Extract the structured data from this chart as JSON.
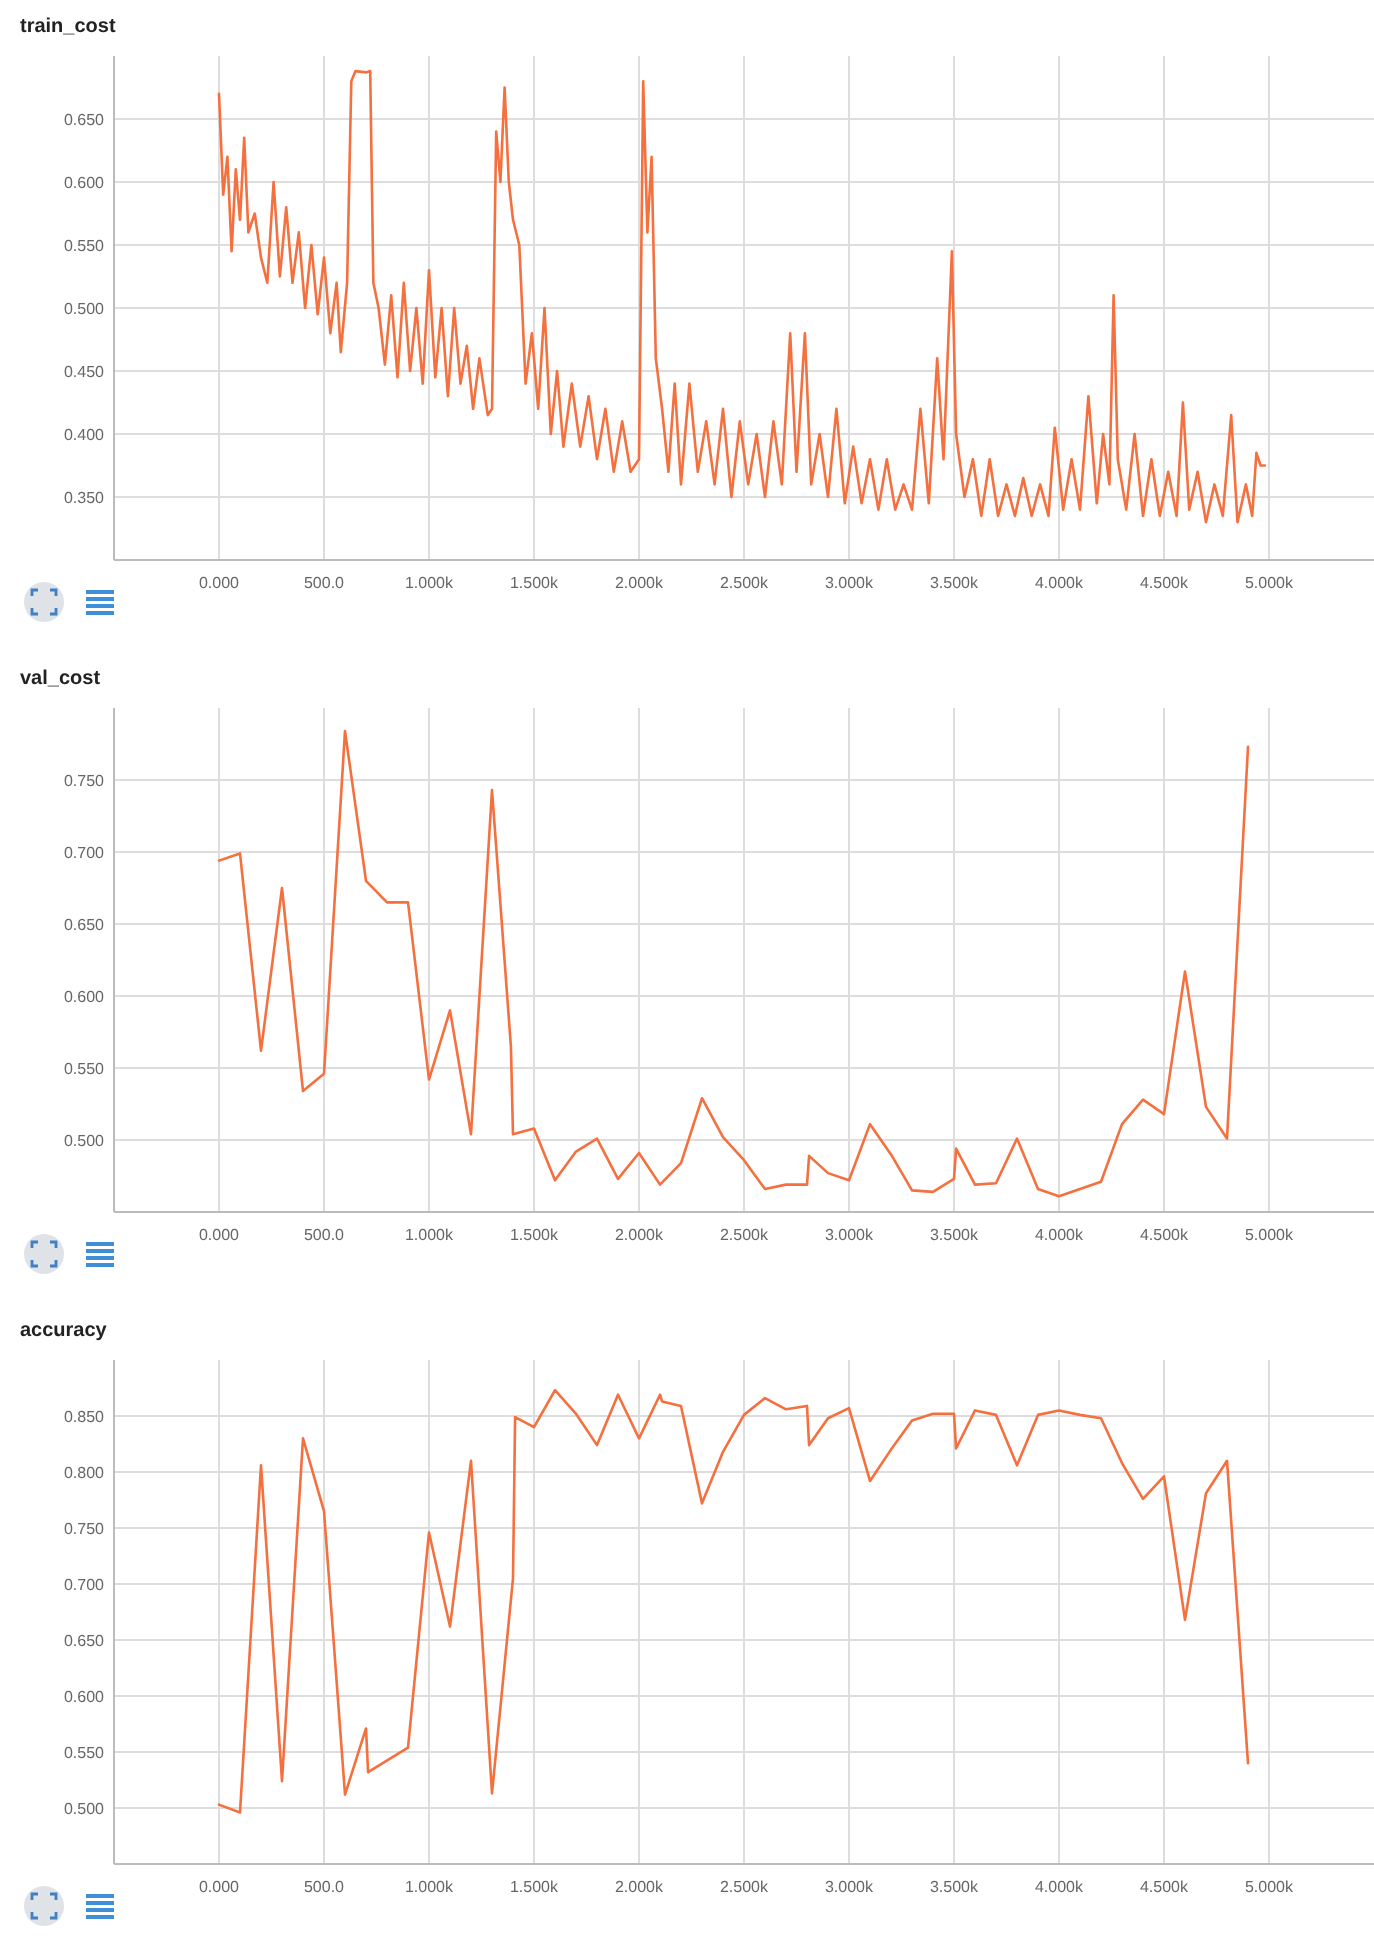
{
  "chart_data": [
    {
      "type": "line",
      "title": "train_cost",
      "grid": true,
      "xlim": [
        -500,
        5500
      ],
      "ylim": [
        0.3,
        0.7
      ],
      "xticks": [
        {
          "value": 0,
          "label": "0.000"
        },
        {
          "value": 500,
          "label": "500.0"
        },
        {
          "value": 1000,
          "label": "1.000k"
        },
        {
          "value": 1500,
          "label": "1.500k"
        },
        {
          "value": 2000,
          "label": "2.000k"
        },
        {
          "value": 2500,
          "label": "2.500k"
        },
        {
          "value": 3000,
          "label": "3.000k"
        },
        {
          "value": 3500,
          "label": "3.500k"
        },
        {
          "value": 4000,
          "label": "4.000k"
        },
        {
          "value": 4500,
          "label": "4.500k"
        },
        {
          "value": 5000,
          "label": "5.000k"
        }
      ],
      "yticks": [
        {
          "value": 0.35,
          "label": "0.350"
        },
        {
          "value": 0.4,
          "label": "0.400"
        },
        {
          "value": 0.45,
          "label": "0.450"
        },
        {
          "value": 0.5,
          "label": "0.500"
        },
        {
          "value": 0.55,
          "label": "0.550"
        },
        {
          "value": 0.6,
          "label": "0.600"
        },
        {
          "value": 0.65,
          "label": "0.650"
        }
      ],
      "series": [
        {
          "color": "#f4703f",
          "x": [
            0,
            20,
            40,
            60,
            80,
            100,
            120,
            140,
            170,
            200,
            230,
            260,
            290,
            320,
            350,
            380,
            410,
            440,
            470,
            500,
            530,
            560,
            580,
            610,
            630,
            650,
            700,
            720,
            735,
            760,
            790,
            820,
            850,
            880,
            910,
            940,
            970,
            1000,
            1030,
            1060,
            1090,
            1120,
            1150,
            1180,
            1210,
            1240,
            1280,
            1300,
            1320,
            1340,
            1360,
            1380,
            1400,
            1430,
            1460,
            1490,
            1520,
            1550,
            1580,
            1610,
            1640,
            1680,
            1720,
            1760,
            1800,
            1840,
            1880,
            1920,
            1960,
            2000,
            2020,
            2040,
            2060,
            2080,
            2110,
            2140,
            2170,
            2200,
            2240,
            2280,
            2320,
            2360,
            2400,
            2440,
            2480,
            2520,
            2560,
            2600,
            2640,
            2680,
            2720,
            2750,
            2790,
            2820,
            2860,
            2900,
            2940,
            2980,
            3020,
            3060,
            3100,
            3140,
            3180,
            3220,
            3260,
            3300,
            3340,
            3380,
            3420,
            3450,
            3490,
            3510,
            3550,
            3590,
            3630,
            3670,
            3710,
            3750,
            3790,
            3830,
            3870,
            3910,
            3950,
            3980,
            4020,
            4060,
            4100,
            4140,
            4180,
            4210,
            4240,
            4260,
            4280,
            4320,
            4360,
            4400,
            4440,
            4480,
            4520,
            4560,
            4590,
            4620,
            4660,
            4700,
            4740,
            4780,
            4820,
            4850,
            4890,
            4920,
            4940,
            4960,
            4980
          ],
          "values": [
            0.67,
            0.59,
            0.62,
            0.545,
            0.61,
            0.57,
            0.635,
            0.56,
            0.575,
            0.54,
            0.52,
            0.6,
            0.525,
            0.58,
            0.52,
            0.56,
            0.5,
            0.55,
            0.495,
            0.54,
            0.48,
            0.52,
            0.465,
            0.52,
            0.68,
            0.688,
            0.687,
            0.688,
            0.52,
            0.5,
            0.455,
            0.51,
            0.445,
            0.52,
            0.45,
            0.5,
            0.44,
            0.53,
            0.445,
            0.5,
            0.43,
            0.5,
            0.44,
            0.47,
            0.42,
            0.46,
            0.415,
            0.42,
            0.64,
            0.6,
            0.675,
            0.6,
            0.57,
            0.55,
            0.44,
            0.48,
            0.42,
            0.5,
            0.4,
            0.45,
            0.39,
            0.44,
            0.39,
            0.43,
            0.38,
            0.42,
            0.37,
            0.41,
            0.37,
            0.38,
            0.68,
            0.56,
            0.62,
            0.46,
            0.42,
            0.37,
            0.44,
            0.36,
            0.44,
            0.37,
            0.41,
            0.36,
            0.42,
            0.35,
            0.41,
            0.36,
            0.4,
            0.35,
            0.41,
            0.36,
            0.48,
            0.37,
            0.48,
            0.36,
            0.4,
            0.35,
            0.42,
            0.345,
            0.39,
            0.345,
            0.38,
            0.34,
            0.38,
            0.34,
            0.36,
            0.34,
            0.42,
            0.345,
            0.46,
            0.38,
            0.545,
            0.4,
            0.35,
            0.38,
            0.335,
            0.38,
            0.335,
            0.36,
            0.335,
            0.365,
            0.335,
            0.36,
            0.335,
            0.405,
            0.34,
            0.38,
            0.34,
            0.43,
            0.345,
            0.4,
            0.36,
            0.51,
            0.38,
            0.34,
            0.4,
            0.335,
            0.38,
            0.335,
            0.37,
            0.335,
            0.425,
            0.34,
            0.37,
            0.33,
            0.36,
            0.335,
            0.415,
            0.33,
            0.36,
            0.335,
            0.385,
            0.375,
            0.375
          ]
        }
      ]
    },
    {
      "type": "line",
      "title": "val_cost",
      "grid": true,
      "xlim": [
        -500,
        5500
      ],
      "ylim": [
        0.45,
        0.8
      ],
      "xticks": [
        {
          "value": 0,
          "label": "0.000"
        },
        {
          "value": 500,
          "label": "500.0"
        },
        {
          "value": 1000,
          "label": "1.000k"
        },
        {
          "value": 1500,
          "label": "1.500k"
        },
        {
          "value": 2000,
          "label": "2.000k"
        },
        {
          "value": 2500,
          "label": "2.500k"
        },
        {
          "value": 3000,
          "label": "3.000k"
        },
        {
          "value": 3500,
          "label": "3.500k"
        },
        {
          "value": 4000,
          "label": "4.000k"
        },
        {
          "value": 4500,
          "label": "4.500k"
        },
        {
          "value": 5000,
          "label": "5.000k"
        }
      ],
      "yticks": [
        {
          "value": 0.5,
          "label": "0.500"
        },
        {
          "value": 0.55,
          "label": "0.550"
        },
        {
          "value": 0.6,
          "label": "0.600"
        },
        {
          "value": 0.65,
          "label": "0.650"
        },
        {
          "value": 0.7,
          "label": "0.700"
        },
        {
          "value": 0.75,
          "label": "0.750"
        }
      ],
      "series": [
        {
          "color": "#f4703f",
          "x": [
            0,
            100,
            200,
            300,
            400,
            500,
            600,
            700,
            800,
            900,
            1000,
            1100,
            1200,
            1300,
            1390,
            1400,
            1500,
            1600,
            1700,
            1800,
            1900,
            2000,
            2100,
            2200,
            2300,
            2400,
            2500,
            2600,
            2700,
            2800,
            2810,
            2900,
            3000,
            3100,
            3200,
            3300,
            3400,
            3500,
            3510,
            3600,
            3700,
            3800,
            3900,
            4000,
            4100,
            4200,
            4300,
            4400,
            4500,
            4600,
            4700,
            4800,
            4900
          ],
          "values": [
            0.694,
            0.699,
            0.562,
            0.675,
            0.534,
            0.546,
            0.784,
            0.68,
            0.665,
            0.665,
            0.542,
            0.59,
            0.504,
            0.743,
            0.565,
            0.504,
            0.508,
            0.472,
            0.492,
            0.501,
            0.473,
            0.491,
            0.469,
            0.484,
            0.529,
            0.502,
            0.486,
            0.466,
            0.469,
            0.469,
            0.489,
            0.477,
            0.472,
            0.511,
            0.49,
            0.465,
            0.464,
            0.473,
            0.494,
            0.469,
            0.47,
            0.501,
            0.466,
            0.461,
            0.466,
            0.471,
            0.511,
            0.528,
            0.518,
            0.617,
            0.523,
            0.501,
            0.773
          ]
        }
      ]
    },
    {
      "type": "line",
      "title": "accuracy",
      "grid": true,
      "xlim": [
        -500,
        5500
      ],
      "ylim": [
        0.45,
        0.9
      ],
      "xticks": [
        {
          "value": 0,
          "label": "0.000"
        },
        {
          "value": 500,
          "label": "500.0"
        },
        {
          "value": 1000,
          "label": "1.000k"
        },
        {
          "value": 1500,
          "label": "1.500k"
        },
        {
          "value": 2000,
          "label": "2.000k"
        },
        {
          "value": 2500,
          "label": "2.500k"
        },
        {
          "value": 3000,
          "label": "3.000k"
        },
        {
          "value": 3500,
          "label": "3.500k"
        },
        {
          "value": 4000,
          "label": "4.000k"
        },
        {
          "value": 4500,
          "label": "4.500k"
        },
        {
          "value": 5000,
          "label": "5.000k"
        }
      ],
      "yticks": [
        {
          "value": 0.5,
          "label": "0.500"
        },
        {
          "value": 0.55,
          "label": "0.550"
        },
        {
          "value": 0.6,
          "label": "0.600"
        },
        {
          "value": 0.65,
          "label": "0.650"
        },
        {
          "value": 0.7,
          "label": "0.700"
        },
        {
          "value": 0.75,
          "label": "0.750"
        },
        {
          "value": 0.8,
          "label": "0.800"
        },
        {
          "value": 0.85,
          "label": "0.850"
        }
      ],
      "series": [
        {
          "color": "#f4703f",
          "x": [
            0,
            100,
            200,
            300,
            400,
            500,
            600,
            700,
            710,
            900,
            1000,
            1100,
            1200,
            1300,
            1400,
            1410,
            1500,
            1600,
            1700,
            1800,
            1900,
            2000,
            2100,
            2110,
            2200,
            2300,
            2400,
            2500,
            2600,
            2700,
            2800,
            2810,
            2900,
            3000,
            3100,
            3200,
            3300,
            3400,
            3500,
            3510,
            3600,
            3700,
            3800,
            3900,
            4000,
            4100,
            4200,
            4300,
            4400,
            4500,
            4600,
            4700,
            4800,
            4900
          ],
          "values": [
            0.503,
            0.496,
            0.806,
            0.524,
            0.83,
            0.765,
            0.512,
            0.571,
            0.532,
            0.554,
            0.746,
            0.662,
            0.81,
            0.513,
            0.705,
            0.849,
            0.84,
            0.873,
            0.852,
            0.824,
            0.869,
            0.83,
            0.869,
            0.863,
            0.859,
            0.772,
            0.818,
            0.851,
            0.866,
            0.856,
            0.859,
            0.824,
            0.848,
            0.857,
            0.792,
            0.82,
            0.846,
            0.852,
            0.852,
            0.821,
            0.855,
            0.851,
            0.806,
            0.851,
            0.855,
            0.851,
            0.848,
            0.808,
            0.776,
            0.796,
            0.668,
            0.781,
            0.81,
            0.54
          ]
        }
      ]
    }
  ]
}
